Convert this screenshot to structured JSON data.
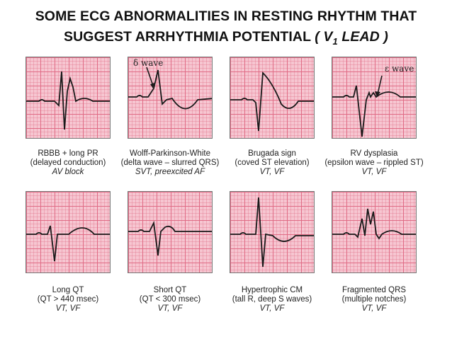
{
  "title": {
    "line1": "SOME ECG ABNORMALITIES IN RESTING RHYTHM THAT",
    "line2_prefix": "SUGGEST ARRHYTHMIA POTENTIAL ",
    "line2_italic": "( V",
    "line2_sub": "1",
    "line2_suffix": " LEAD )"
  },
  "panels": [
    {
      "name": "RBBB + long PR",
      "desc": "(delayed conduction)",
      "risk": "AV block"
    },
    {
      "name": "Wolff-Parkinson-White",
      "desc": "(delta wave – slurred QRS)",
      "risk": "SVT, preexcited AF",
      "annotation": "δ wave"
    },
    {
      "name": "Brugada sign",
      "desc": "(coved ST elevation)",
      "risk": "VT, VF"
    },
    {
      "name": "RV dysplasia",
      "desc": "(epsilon wave – rippled ST)",
      "risk": "VT, VF",
      "annotation": "ε wave"
    },
    {
      "name": "Long QT",
      "desc": "(QT > 440 msec)",
      "risk": "VT, VF"
    },
    {
      "name": "Short QT",
      "desc": "(QT < 300 msec)",
      "risk": "VT, VF"
    },
    {
      "name": "Hypertrophic CM",
      "desc": "(tall R, deep S waves)",
      "risk": "VT, VF"
    },
    {
      "name": "Fragmented QRS",
      "desc": "(multiple notches)",
      "risk": "VT, VF"
    }
  ],
  "colors": {
    "grid_major": "#e06b85",
    "grid_minor": "#f0a5b5",
    "paper": "#f6c6d1",
    "trace": "#1a1a1a"
  }
}
